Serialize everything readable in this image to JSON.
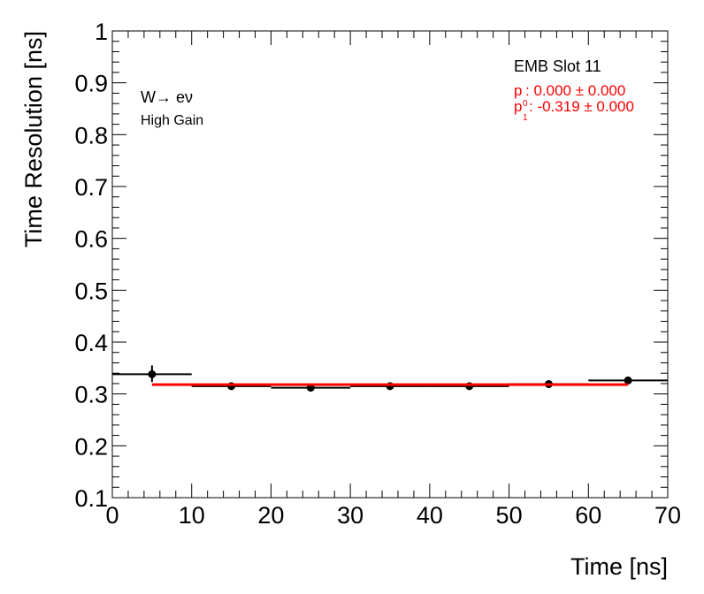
{
  "chart_data": {
    "type": "scatter",
    "xlabel": "Time [ns]",
    "ylabel": "Time Resolution [ns]",
    "xlim": [
      0,
      70
    ],
    "ylim": [
      0.1,
      1
    ],
    "x_ticks": [
      "0",
      "10",
      "20",
      "30",
      "40",
      "50",
      "60",
      "70"
    ],
    "y_ticks": [
      "0.1",
      "0.2",
      "0.3",
      "0.4",
      "0.5",
      "0.6",
      "0.7",
      "0.8",
      "0.9",
      "1"
    ],
    "grid": false,
    "series": [
      {
        "color": "#000000",
        "points": [
          {
            "x": 5,
            "y": 0.338,
            "xlo": 0,
            "xhi": 10,
            "ylo": 0.323,
            "yhi": 0.355
          },
          {
            "x": 15,
            "y": 0.315,
            "xlo": 10,
            "xhi": 20,
            "ylo": 0.313,
            "yhi": 0.317
          },
          {
            "x": 25,
            "y": 0.312,
            "xlo": 20,
            "xhi": 30,
            "ylo": 0.31,
            "yhi": 0.314
          },
          {
            "x": 35,
            "y": 0.315,
            "xlo": 30,
            "xhi": 40,
            "ylo": 0.313,
            "yhi": 0.317
          },
          {
            "x": 45,
            "y": 0.315,
            "xlo": 40,
            "xhi": 50,
            "ylo": 0.313,
            "yhi": 0.317
          },
          {
            "x": 55,
            "y": 0.319,
            "xlo": 50,
            "xhi": 60,
            "ylo": 0.317,
            "yhi": 0.321
          },
          {
            "x": 65,
            "y": 0.326,
            "xlo": 60,
            "xhi": 70,
            "ylo": 0.323,
            "yhi": 0.329
          }
        ]
      }
    ],
    "fit": {
      "color": "#ff0000",
      "x": [
        5,
        65
      ],
      "y": [
        0.318,
        0.318
      ]
    },
    "annotations": {
      "process": "W→ eν",
      "gain": "High Gain",
      "slot": "EMB Slot 11",
      "p0_symbol": "p",
      "p0_sub": "0",
      "p0_value": ": 0.000 ± 0.000",
      "p1_symbol": "p",
      "p1_sub": "1",
      "p1_value": ": -0.319 ± 0.000"
    }
  }
}
